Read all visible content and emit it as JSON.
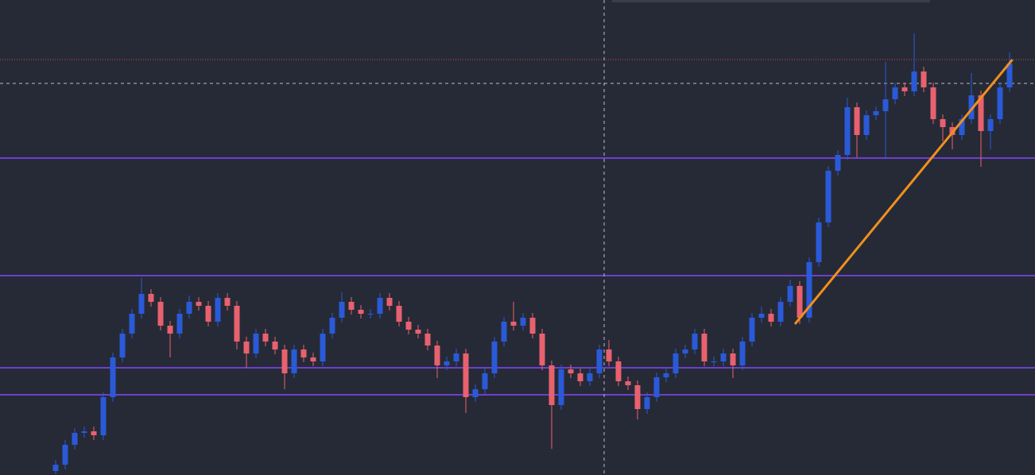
{
  "chart_data": {
    "type": "candlestick",
    "ylim": [
      0,
      598
    ],
    "up_color": "#2a5ad8",
    "down_color": "#e8616f",
    "open": [
      5,
      13,
      38,
      53,
      55,
      50,
      98,
      148,
      178,
      203,
      228,
      218,
      188,
      178,
      203,
      218,
      213,
      193,
      223,
      213,
      168,
      153,
      178,
      168,
      158,
      128,
      158,
      148,
      143,
      178,
      198,
      218,
      208,
      203,
      203,
      223,
      213,
      193,
      183,
      178,
      163,
      138,
      143,
      153,
      98,
      108,
      128,
      168,
      193,
      188,
      198,
      178,
      138,
      88,
      133,
      128,
      118,
      128,
      158,
      143,
      118,
      113,
      83,
      98,
      123,
      128,
      153,
      158,
      178,
      143,
      143,
      153,
      138,
      168,
      198,
      203,
      193,
      218,
      238,
      198,
      268,
      318,
      383,
      403,
      463,
      428,
      453,
      458,
      473,
      488,
      483,
      508,
      488,
      448,
      438,
      428,
      448,
      478,
      433,
      448,
      488
    ],
    "high": [
      19,
      44,
      59,
      61,
      61,
      104,
      154,
      184,
      209,
      248,
      234,
      224,
      194,
      209,
      226,
      224,
      219,
      229,
      229,
      219,
      174,
      184,
      184,
      174,
      164,
      164,
      164,
      154,
      184,
      204,
      230,
      224,
      214,
      209,
      229,
      229,
      219,
      199,
      189,
      184,
      169,
      149,
      159,
      159,
      114,
      134,
      174,
      199,
      218,
      204,
      204,
      184,
      144,
      139,
      139,
      134,
      134,
      164,
      170,
      149,
      124,
      119,
      104,
      129,
      134,
      159,
      164,
      184,
      184,
      149,
      159,
      159,
      174,
      204,
      212,
      209,
      224,
      246,
      244,
      274,
      324,
      389,
      409,
      475,
      469,
      459,
      464,
      520,
      494,
      494,
      556,
      514,
      494,
      454,
      444,
      454,
      506,
      484,
      454,
      494,
      532
    ],
    "low": [
      1,
      7,
      32,
      47,
      44,
      44,
      92,
      142,
      172,
      197,
      212,
      182,
      148,
      172,
      197,
      207,
      187,
      187,
      207,
      158,
      135,
      147,
      162,
      152,
      108,
      122,
      142,
      137,
      137,
      172,
      192,
      202,
      197,
      197,
      197,
      207,
      187,
      177,
      172,
      157,
      122,
      132,
      137,
      78,
      92,
      102,
      122,
      162,
      182,
      182,
      172,
      132,
      33,
      82,
      122,
      112,
      112,
      122,
      137,
      112,
      107,
      70,
      77,
      92,
      117,
      122,
      147,
      152,
      137,
      137,
      137,
      122,
      132,
      162,
      192,
      187,
      187,
      212,
      190,
      192,
      262,
      312,
      377,
      397,
      400,
      422,
      447,
      400,
      467,
      477,
      477,
      482,
      442,
      420,
      410,
      422,
      442,
      388,
      410,
      442,
      482
    ],
    "close": [
      13,
      38,
      53,
      55,
      50,
      98,
      148,
      178,
      203,
      228,
      218,
      188,
      178,
      203,
      218,
      213,
      193,
      223,
      213,
      168,
      153,
      178,
      168,
      158,
      128,
      158,
      148,
      143,
      178,
      198,
      218,
      208,
      203,
      203,
      223,
      213,
      193,
      183,
      178,
      163,
      138,
      143,
      153,
      98,
      108,
      128,
      168,
      193,
      188,
      198,
      178,
      138,
      88,
      133,
      128,
      118,
      128,
      158,
      143,
      118,
      113,
      83,
      98,
      123,
      128,
      153,
      158,
      178,
      143,
      143,
      153,
      138,
      168,
      198,
      203,
      193,
      218,
      238,
      198,
      268,
      318,
      383,
      403,
      463,
      428,
      453,
      458,
      473,
      488,
      483,
      508,
      488,
      448,
      438,
      428,
      448,
      478,
      433,
      448,
      488,
      518
    ],
    "levels": [
      {
        "value": 399,
        "color": "#6d3fd0"
      },
      {
        "value": 251,
        "color": "#6d3fd0"
      },
      {
        "value": 135,
        "color": "#6d3fd0"
      },
      {
        "value": 101,
        "color": "#6d3fd0"
      }
    ],
    "price_line": {
      "value": 523,
      "color": "#c0504d"
    },
    "crosshair": {
      "x": 57.5,
      "y": 493,
      "color": "#b8bcc8"
    },
    "trendline": {
      "x": [
        77.5,
        100.3
      ],
      "values": [
        190,
        523
      ],
      "color": "#f0901e"
    }
  }
}
